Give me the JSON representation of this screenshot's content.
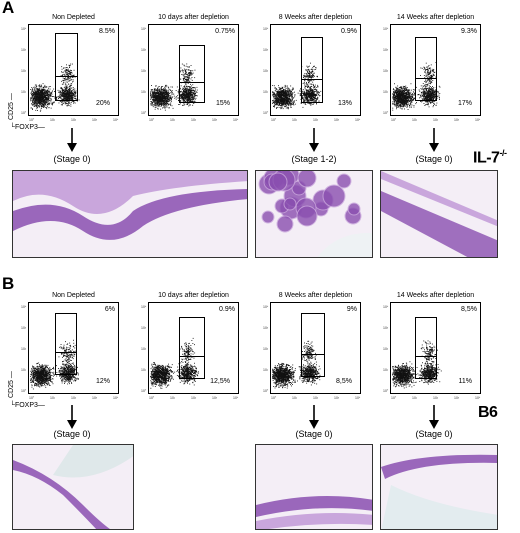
{
  "panel_a": {
    "letter": "A",
    "strain": "IL-7",
    "strain_sup": "-/-",
    "columns": [
      {
        "title": "Non Depleted",
        "top_pct": "8.5%",
        "bottom_pct": "20%",
        "stage": "(Stage 0)",
        "has_histology": true
      },
      {
        "title": "10 days after depletion",
        "top_pct": "0.75%",
        "bottom_pct": "15%",
        "stage": "",
        "has_histology": false
      },
      {
        "title": "8 Weeks after depletion",
        "top_pct": "0.9%",
        "bottom_pct": "13%",
        "stage": "(Stage 1-2)",
        "has_histology": true
      },
      {
        "title": "14 Weeks after depletion",
        "top_pct": "9.3%",
        "bottom_pct": "17%",
        "stage": "(Stage 0)",
        "has_histology": true
      }
    ],
    "y_axis": "CD25",
    "x_axis": "FOXP3"
  },
  "panel_b": {
    "letter": "B",
    "strain": "B6",
    "columns": [
      {
        "title": "Non Depleted",
        "top_pct": "6%",
        "bottom_pct": "12%",
        "stage": "(Stage 0)",
        "has_histology": true
      },
      {
        "title": "10 days after depletion",
        "top_pct": "0.9%",
        "bottom_pct": "12,5%",
        "stage": "",
        "has_histology": false
      },
      {
        "title": "8 Weeks after depletion",
        "top_pct": "9%",
        "bottom_pct": "8,5%",
        "stage": "(Stage 0)",
        "has_histology": true
      },
      {
        "title": "14 Weeks after depletion",
        "top_pct": "8,5%",
        "bottom_pct": "11%",
        "stage": "(Stage 0)",
        "has_histology": true
      }
    ],
    "y_axis": "CD25",
    "x_axis": "FOXP3"
  },
  "tick_labels": [
    "10°",
    "10¹",
    "10²",
    "10³",
    "10⁴"
  ],
  "colors": {
    "tissue": "#8a4fb0",
    "tissue_light": "#c9a6dc",
    "background": "#f4eef6"
  }
}
